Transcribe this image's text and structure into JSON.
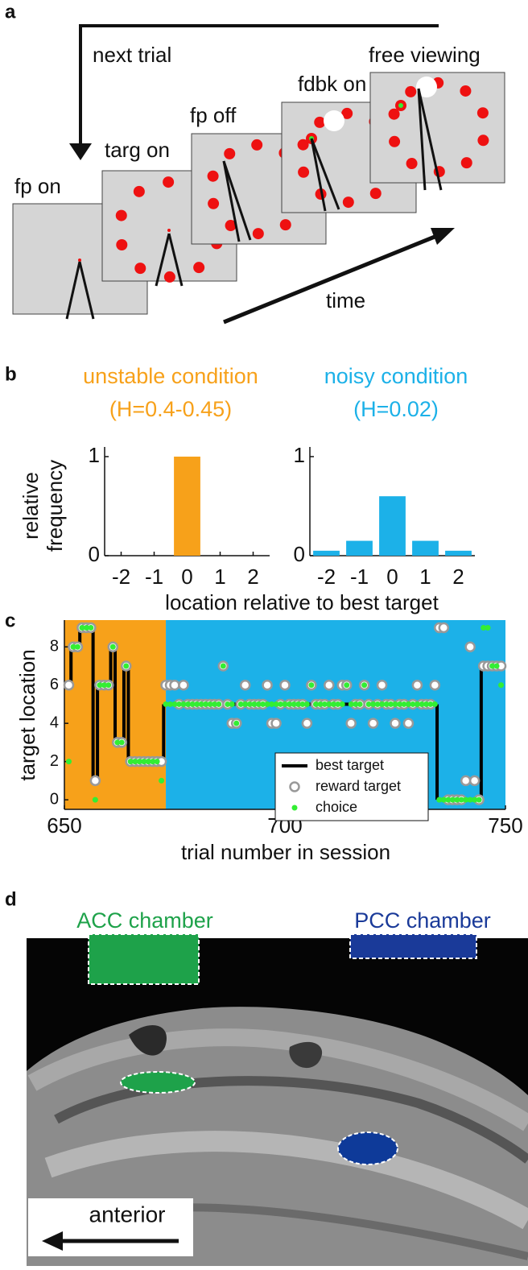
{
  "panel_labels": [
    "a",
    "b",
    "c",
    "d"
  ],
  "timeline": {
    "next_trial": "next trial",
    "time": "time",
    "screens": [
      "fp on",
      "targ on",
      "fp off",
      "fdbk on",
      "free viewing"
    ]
  },
  "chart_data": [
    {
      "type": "bar",
      "title": "unstable condition",
      "subtitle": "(H=0.4-0.45)",
      "color": "#f7a11a",
      "categories": [
        "-2",
        "-1",
        "0",
        "1",
        "2"
      ],
      "values": [
        0,
        0,
        1,
        0,
        0
      ],
      "ylim": [
        0,
        1
      ],
      "yticks": [
        0,
        1
      ],
      "ylabel": [
        "relative",
        "frequency"
      ],
      "xlabel": "location relative to best target"
    },
    {
      "type": "bar",
      "title": "noisy condition",
      "subtitle": "(H=0.02)",
      "color": "#1cb1e8",
      "categories": [
        "-2",
        "-1",
        "0",
        "1",
        "2"
      ],
      "values": [
        0.05,
        0.15,
        0.6,
        0.15,
        0.05
      ],
      "ylim": [
        0,
        1
      ],
      "yticks": [
        0,
        1
      ]
    },
    {
      "type": "scatter",
      "xlabel": "trial number in session",
      "ylabel": "target location",
      "xlim": [
        650,
        750
      ],
      "xticks": [
        650,
        700,
        750
      ],
      "ylim": [
        -0.5,
        9.4
      ],
      "yticks": [
        0,
        2,
        4,
        6,
        8
      ],
      "legend": "lower right",
      "shaded_regions": [
        {
          "start": 650,
          "end": 673,
          "color": "#f7a11a"
        },
        {
          "start": 673,
          "end": 750,
          "color": "#1cb1e8"
        }
      ],
      "x": [
        651,
        652,
        653,
        654,
        655,
        656,
        657,
        658,
        659,
        660,
        661,
        662,
        663,
        664,
        665,
        666,
        667,
        668,
        669,
        670,
        671,
        672,
        673,
        674,
        675,
        676,
        677,
        678,
        679,
        680,
        681,
        682,
        683,
        684,
        685,
        686,
        687,
        688,
        689,
        690,
        691,
        692,
        693,
        694,
        695,
        696,
        697,
        698,
        699,
        700,
        701,
        702,
        703,
        704,
        705,
        706,
        707,
        708,
        709,
        710,
        711,
        712,
        713,
        714,
        715,
        716,
        717,
        718,
        719,
        720,
        721,
        722,
        723,
        724,
        725,
        726,
        727,
        728,
        729,
        730,
        731,
        732,
        733,
        734,
        735,
        736,
        737,
        738,
        739,
        740,
        741,
        742,
        743,
        744,
        745,
        746,
        747,
        748,
        749
      ],
      "series": [
        {
          "name": "best target",
          "color": "#000000",
          "style": "step",
          "values": [
            6,
            8,
            8,
            9,
            9,
            9,
            1,
            6,
            6,
            6,
            8,
            3,
            3,
            7,
            2,
            2,
            2,
            2,
            2,
            2,
            2,
            2,
            5,
            5,
            5,
            5,
            5,
            5,
            5,
            5,
            5,
            5,
            5,
            5,
            5,
            5,
            5,
            5,
            5,
            5,
            5,
            5,
            5,
            5,
            5,
            5,
            5,
            5,
            5,
            5,
            5,
            5,
            5,
            5,
            5,
            5,
            5,
            5,
            5,
            5,
            5,
            5,
            5,
            5,
            5,
            5,
            5,
            5,
            5,
            5,
            5,
            5,
            5,
            5,
            5,
            5,
            5,
            5,
            5,
            5,
            5,
            5,
            5,
            5,
            0,
            0,
            0,
            0,
            0,
            0,
            0,
            0,
            0,
            0,
            7,
            7,
            7,
            7,
            7
          ]
        },
        {
          "name": "reward target",
          "color": "#999999",
          "style": "ring",
          "values": [
            6,
            8,
            8,
            9,
            9,
            9,
            1,
            6,
            6,
            6,
            8,
            3,
            3,
            7,
            2,
            2,
            2,
            2,
            2,
            2,
            2,
            2,
            6,
            6,
            6,
            5,
            6,
            5,
            5,
            5,
            5,
            5,
            5,
            5,
            5,
            7,
            5,
            4,
            4,
            5,
            6,
            5,
            5,
            5,
            5,
            6,
            4,
            4,
            5,
            6,
            5,
            5,
            5,
            5,
            4,
            6,
            5,
            5,
            5,
            6,
            5,
            5,
            6,
            6,
            4,
            5,
            5,
            6,
            5,
            4,
            5,
            6,
            5,
            5,
            4,
            5,
            5,
            4,
            5,
            6,
            5,
            5,
            5,
            6,
            9,
            9,
            0,
            0,
            0,
            0,
            1,
            8,
            1,
            0,
            7,
            7,
            7,
            7,
            7
          ]
        },
        {
          "name": "choice",
          "color": "#33ee33",
          "style": "dot",
          "values": [
            2,
            8,
            8,
            9,
            9,
            9,
            0,
            6,
            6,
            6,
            8,
            3,
            3,
            7,
            2,
            2,
            2,
            2,
            2,
            2,
            2,
            1,
            5,
            5,
            5,
            5,
            5,
            5,
            5,
            5,
            5,
            5,
            5,
            5,
            5,
            7,
            5,
            5,
            4,
            5,
            5,
            5,
            5,
            5,
            5,
            5,
            5,
            5,
            5,
            5,
            5,
            5,
            5,
            5,
            5,
            6,
            5,
            5,
            5,
            5,
            5,
            5,
            5,
            6,
            5,
            5,
            5,
            6,
            5,
            5,
            5,
            5,
            5,
            5,
            5,
            5,
            5,
            5,
            5,
            5,
            5,
            5,
            5,
            5,
            0,
            0,
            0,
            0,
            0,
            0,
            0,
            0,
            0,
            0,
            9,
            9,
            7,
            7,
            6
          ]
        }
      ]
    }
  ],
  "mri": {
    "acc_label": "ACC chamber",
    "pcc_label": "PCC chamber",
    "direction": "anterior"
  }
}
